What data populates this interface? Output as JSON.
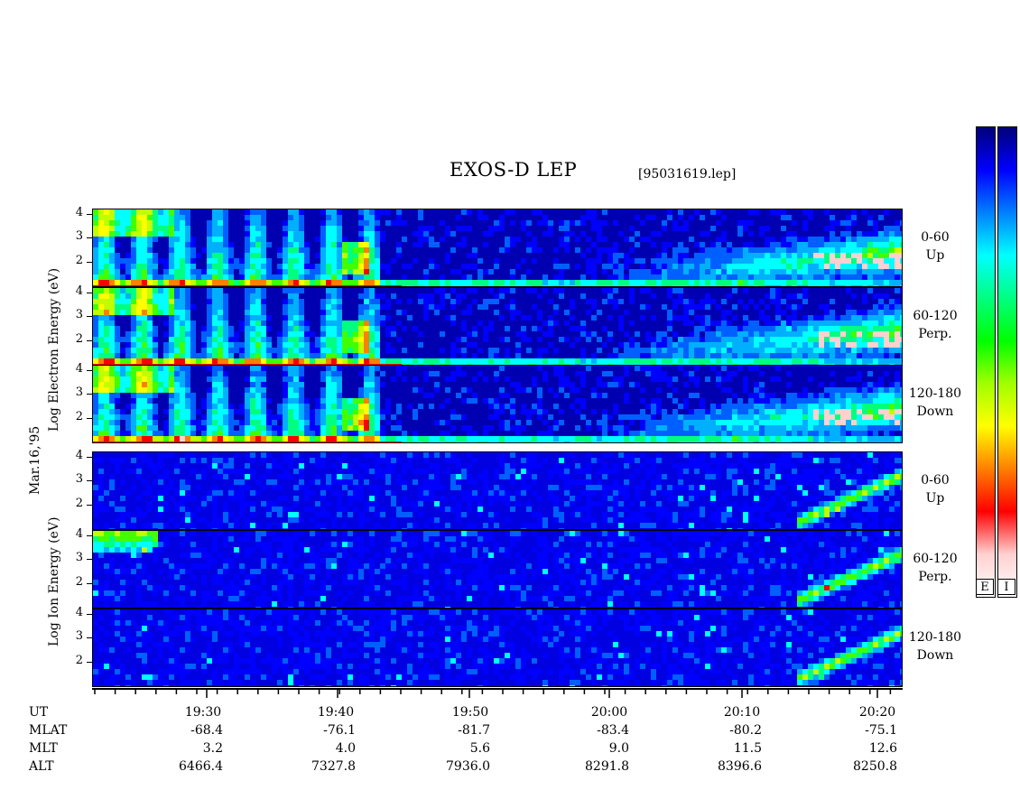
{
  "header": {
    "title": "EXOS-D LEP",
    "filename": "[95031619.lep]"
  },
  "left_labels": {
    "date": "Mar.16,'95",
    "electron_axis": "Log  Electron  Energy  (eV)",
    "ion_axis": "Log  Ion  Energy  (eV)"
  },
  "panels": [
    {
      "species": "Electron",
      "pitch": "0-60",
      "dir": "Up"
    },
    {
      "species": "Electron",
      "pitch": "60-120",
      "dir": "Perp."
    },
    {
      "species": "Electron",
      "pitch": "120-180",
      "dir": "Down"
    },
    {
      "species": "Ion",
      "pitch": "0-60",
      "dir": "Up"
    },
    {
      "species": "Ion",
      "pitch": "60-120",
      "dir": "Perp."
    },
    {
      "species": "Ion",
      "pitch": "120-180",
      "dir": "Down"
    }
  ],
  "ytick_labels": [
    "4",
    "3",
    "2"
  ],
  "colorbars": [
    {
      "label": "E"
    },
    {
      "label": "I"
    }
  ],
  "colorbar_colors": [
    "#00007a",
    "#0000ff",
    "#0080ff",
    "#00ffff",
    "#00ff80",
    "#00ff00",
    "#a0ff00",
    "#ffff00",
    "#ff8000",
    "#ff0000",
    "#ffd0d0",
    "#ffffff"
  ],
  "ephemeris": {
    "row_labels": [
      "UT",
      "MLAT",
      "MLT",
      "ALT"
    ],
    "UT": [
      "19:30",
      "19:40",
      "19:50",
      "20:00",
      "20:10",
      "20:20"
    ],
    "MLAT": [
      "-68.4",
      "-76.1",
      "-81.7",
      "-83.4",
      "-80.2",
      "-75.1"
    ],
    "MLT": [
      "3.2",
      "4.0",
      "5.6",
      "9.0",
      "11.5",
      "12.6"
    ],
    "ALT": [
      "6466.4",
      "7327.8",
      "7936.0",
      "8291.8",
      "8396.6",
      "8250.8"
    ]
  },
  "chart_data": {
    "type": "heatmap",
    "title": "EXOS-D LEP",
    "xlabel": "UT",
    "ylabel": "Log Energy (eV)",
    "x_ticks": [
      "19:30",
      "19:40",
      "19:50",
      "20:00",
      "20:10",
      "20:20"
    ],
    "ylim": [
      1,
      4
    ],
    "y_ticks": [
      2,
      3,
      4
    ],
    "colormap": [
      "#00007a",
      "#0000ff",
      "#0080ff",
      "#00ffff",
      "#00ff00",
      "#ffff00",
      "#ff0000",
      "#ffffff"
    ]
  }
}
